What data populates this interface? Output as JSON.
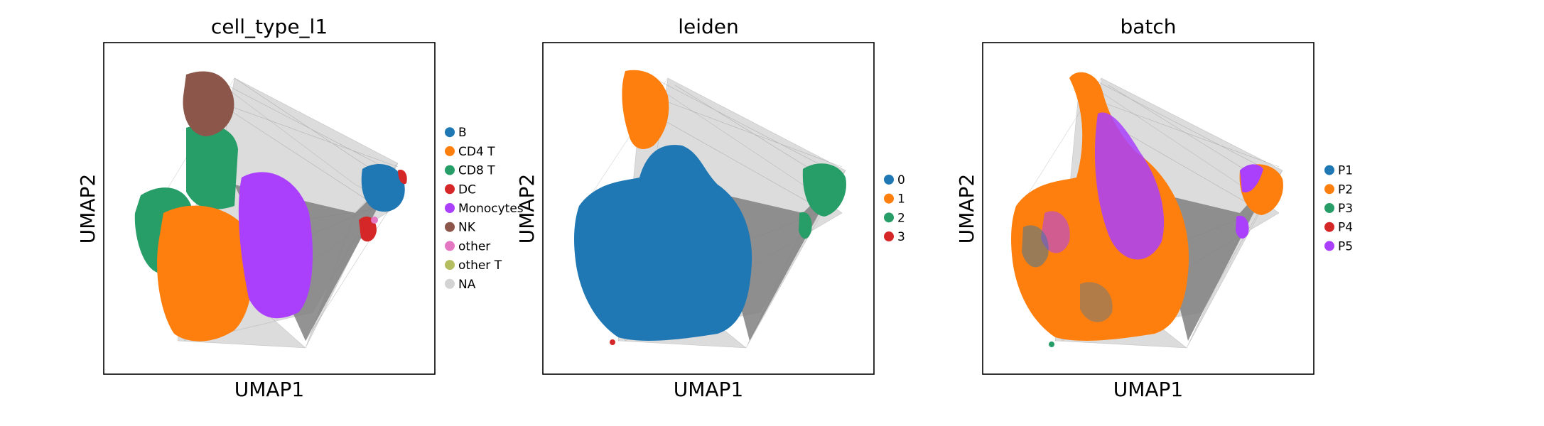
{
  "chart_data": [
    {
      "type": "scatter",
      "title": "cell_type_l1",
      "xlabel": "UMAP1",
      "ylabel": "UMAP2",
      "grid": false,
      "legend_position": "right",
      "legend": [
        {
          "label": "B",
          "color": "#1f77b4"
        },
        {
          "label": "CD4 T",
          "color": "#ff7f0e"
        },
        {
          "label": "CD8 T",
          "color": "#279e68"
        },
        {
          "label": "DC",
          "color": "#d62728"
        },
        {
          "label": "Monocytes",
          "color": "#aa40fc"
        },
        {
          "label": "NK",
          "color": "#8c564b"
        },
        {
          "label": "other",
          "color": "#e377c2"
        },
        {
          "label": "other T",
          "color": "#b5bd61"
        },
        {
          "label": "NA",
          "color": "#d3d3d3"
        }
      ]
    },
    {
      "type": "scatter",
      "title": "leiden",
      "xlabel": "UMAP1",
      "ylabel": "UMAP2",
      "grid": false,
      "legend_position": "right",
      "legend": [
        {
          "label": "0",
          "color": "#1f77b4"
        },
        {
          "label": "1",
          "color": "#ff7f0e"
        },
        {
          "label": "2",
          "color": "#279e68"
        },
        {
          "label": "3",
          "color": "#d62728"
        }
      ]
    },
    {
      "type": "scatter",
      "title": "batch",
      "xlabel": "UMAP1",
      "ylabel": "UMAP2",
      "grid": false,
      "legend_position": "right",
      "legend": [
        {
          "label": "P1",
          "color": "#1f77b4"
        },
        {
          "label": "P2",
          "color": "#ff7f0e"
        },
        {
          "label": "P3",
          "color": "#279e68"
        },
        {
          "label": "P4",
          "color": "#d62728"
        },
        {
          "label": "P5",
          "color": "#aa40fc"
        }
      ]
    }
  ],
  "colors": {
    "edge_gray": "#808080",
    "frame": "#000000",
    "background": "#ffffff"
  }
}
